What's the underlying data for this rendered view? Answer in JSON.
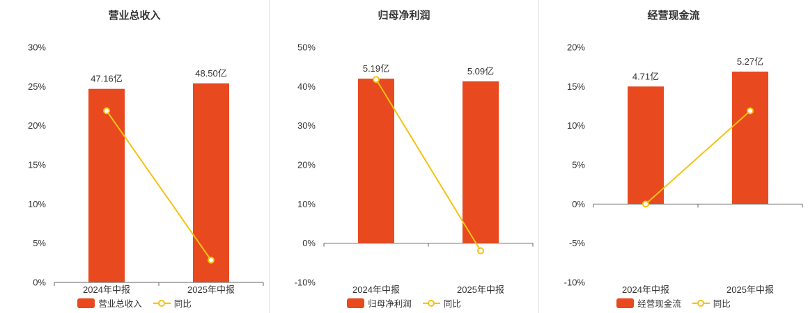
{
  "colors": {
    "bar": "#e8491f",
    "line": "#f5c212",
    "axis": "#666666",
    "text": "#333333",
    "divider": "#dddddd",
    "background": "#ffffff"
  },
  "chart_data": [
    {
      "type": "bar",
      "title": "营业总收入",
      "categories": [
        "2024年中报",
        "2025年中报"
      ],
      "ylim": [
        0,
        30
      ],
      "grid": false,
      "legend_position": "bottom",
      "yticks": [
        {
          "value": 30,
          "label": "30%"
        },
        {
          "value": 25,
          "label": "25%"
        },
        {
          "value": 20,
          "label": "20%"
        },
        {
          "value": 15,
          "label": "15%"
        },
        {
          "value": 10,
          "label": "10%"
        },
        {
          "value": 5,
          "label": "5%"
        },
        {
          "value": 0,
          "label": "0%"
        }
      ],
      "series": [
        {
          "name": "营业总收入",
          "kind": "bar",
          "value_labels": [
            "47.16亿",
            "48.50亿"
          ],
          "axis_values": [
            24.7,
            25.4
          ]
        },
        {
          "name": "同比",
          "kind": "line",
          "values": [
            21.9,
            2.84
          ]
        }
      ]
    },
    {
      "type": "bar",
      "title": "归母净利润",
      "categories": [
        "2024年中报",
        "2025年中报"
      ],
      "ylim": [
        -10,
        50
      ],
      "grid": false,
      "legend_position": "bottom",
      "yticks": [
        {
          "value": 50,
          "label": "50%"
        },
        {
          "value": 40,
          "label": "40%"
        },
        {
          "value": 30,
          "label": "30%"
        },
        {
          "value": 20,
          "label": "20%"
        },
        {
          "value": 10,
          "label": "10%"
        },
        {
          "value": 0,
          "label": "0%"
        },
        {
          "value": -10,
          "label": "-10%"
        }
      ],
      "series": [
        {
          "name": "归母净利润",
          "kind": "bar",
          "value_labels": [
            "5.19亿",
            "5.09亿"
          ],
          "axis_values": [
            42.0,
            41.3
          ]
        },
        {
          "name": "同比",
          "kind": "line",
          "values": [
            41.8,
            -1.93
          ]
        }
      ]
    },
    {
      "type": "bar",
      "title": "经营现金流",
      "categories": [
        "2024年中报",
        "2025年中报"
      ],
      "ylim": [
        -10,
        20
      ],
      "grid": false,
      "legend_position": "bottom",
      "yticks": [
        {
          "value": 20,
          "label": "20%"
        },
        {
          "value": 15,
          "label": "15%"
        },
        {
          "value": 10,
          "label": "10%"
        },
        {
          "value": 5,
          "label": "5%"
        },
        {
          "value": 0,
          "label": "0%"
        },
        {
          "value": -5,
          "label": "-5%"
        },
        {
          "value": -10,
          "label": "-10%"
        }
      ],
      "series": [
        {
          "name": "经营现金流",
          "kind": "bar",
          "value_labels": [
            "4.71亿",
            "5.27亿"
          ],
          "axis_values": [
            15.0,
            16.9
          ]
        },
        {
          "name": "同比",
          "kind": "line",
          "values": [
            0.0,
            11.89
          ]
        }
      ]
    }
  ]
}
